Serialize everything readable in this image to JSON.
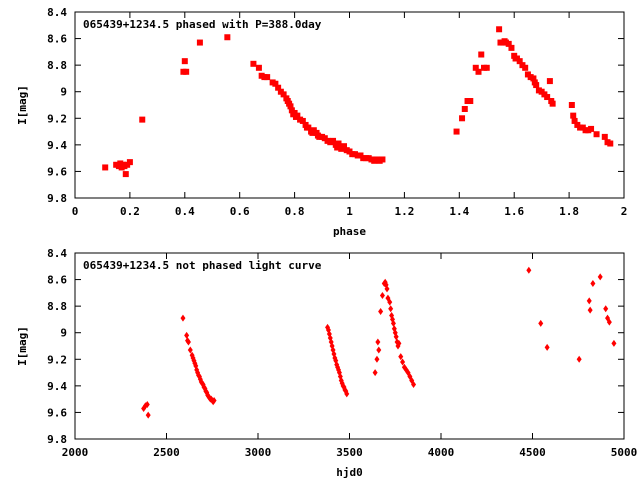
{
  "chart_data": [
    {
      "type": "scatter",
      "title": "065439+1234.5 phased with P=388.0day",
      "xlabel": "phase",
      "ylabel": "I[mag]",
      "xlim": [
        0,
        2
      ],
      "ylim": [
        9.8,
        8.4
      ],
      "y_inverted": true,
      "xticks": [
        "0",
        "0.2",
        "0.4",
        "0.6",
        "0.8",
        "1",
        "1.2",
        "1.4",
        "1.6",
        "1.8",
        "2"
      ],
      "xtick_values": [
        0,
        0.2,
        0.4,
        0.6,
        0.8,
        1.0,
        1.2,
        1.4,
        1.6,
        1.8,
        2.0
      ],
      "yticks": [
        "8.4",
        "8.6",
        "8.8",
        "9",
        "9.2",
        "9.4",
        "9.6",
        "9.8"
      ],
      "ytick_values": [
        8.4,
        8.6,
        8.8,
        9.0,
        9.2,
        9.4,
        9.6,
        9.8
      ],
      "grid": false,
      "point_color": "#ff0000",
      "marker": "filled-square",
      "series": [
        {
          "x": [
            0.11,
            0.15,
            0.16,
            0.165,
            0.17,
            0.175,
            0.18,
            0.185,
            0.19,
            0.2,
            0.245,
            0.395,
            0.4,
            0.405,
            0.455,
            0.555,
            0.65,
            0.67,
            0.68,
            0.69,
            0.7,
            0.72,
            0.73,
            0.74,
            0.75,
            0.76,
            0.77,
            0.775,
            0.78,
            0.785,
            0.79,
            0.795,
            0.8,
            0.805,
            0.81,
            0.82,
            0.83,
            0.84,
            0.845,
            0.85,
            0.86,
            0.865,
            0.87,
            0.88,
            0.885,
            0.89,
            0.9,
            0.91,
            0.92,
            0.93,
            0.94,
            0.95,
            0.955,
            0.96,
            0.97,
            0.98,
            0.99,
            1.0,
            1.01,
            1.02,
            1.03,
            1.04,
            1.05,
            1.06,
            1.07,
            1.08,
            1.09,
            1.1,
            1.11,
            1.12
          ],
          "y": [
            9.57,
            9.55,
            9.56,
            9.54,
            9.57,
            9.55,
            9.56,
            9.62,
            9.55,
            9.53,
            9.21,
            8.85,
            8.77,
            8.85,
            8.63,
            8.59,
            8.79,
            8.82,
            8.88,
            8.89,
            8.89,
            8.93,
            8.94,
            8.97,
            9.0,
            9.02,
            9.05,
            9.07,
            9.09,
            9.11,
            9.14,
            9.17,
            9.16,
            9.19,
            9.18,
            9.21,
            9.22,
            9.25,
            9.27,
            9.27,
            9.3,
            9.31,
            9.29,
            9.31,
            9.33,
            9.34,
            9.34,
            9.35,
            9.37,
            9.38,
            9.37,
            9.4,
            9.42,
            9.39,
            9.43,
            9.41,
            9.44,
            9.45,
            9.47,
            9.47,
            9.48,
            9.48,
            9.5,
            9.5,
            9.5,
            9.51,
            9.52,
            9.51,
            9.52,
            9.51
          ]
        },
        {
          "x": [
            1.39,
            1.41,
            1.42,
            1.43,
            1.44,
            1.46,
            1.47,
            1.48,
            1.49,
            1.5,
            1.545,
            1.55,
            1.56,
            1.565,
            1.57,
            1.58,
            1.59,
            1.6,
            1.605,
            1.61,
            1.62,
            1.63,
            1.64,
            1.65,
            1.66,
            1.67,
            1.675,
            1.68,
            1.69,
            1.7,
            1.71,
            1.72,
            1.73,
            1.735,
            1.74,
            1.81,
            1.815,
            1.82,
            1.83,
            1.84,
            1.85,
            1.86,
            1.87,
            1.88,
            1.9,
            1.93,
            1.94,
            1.95
          ],
          "y": [
            9.3,
            9.2,
            9.13,
            9.07,
            9.07,
            8.82,
            8.85,
            8.72,
            8.82,
            8.82,
            8.53,
            8.63,
            8.63,
            8.62,
            8.63,
            8.64,
            8.67,
            8.73,
            8.75,
            8.75,
            8.77,
            8.8,
            8.82,
            8.87,
            8.89,
            8.9,
            8.93,
            8.95,
            8.99,
            9.0,
            9.02,
            9.04,
            8.92,
            9.07,
            9.09,
            9.1,
            9.18,
            9.22,
            9.25,
            9.27,
            9.27,
            9.29,
            9.29,
            9.28,
            9.32,
            9.34,
            9.38,
            9.39
          ]
        }
      ]
    },
    {
      "type": "scatter",
      "title": "065439+1234.5 not phased light curve",
      "xlabel": "hjd0",
      "ylabel": "I[mag]",
      "xlim": [
        2000,
        5000
      ],
      "ylim": [
        9.8,
        8.4
      ],
      "y_inverted": true,
      "xticks": [
        "2000",
        "2500",
        "3000",
        "3500",
        "4000",
        "4500",
        "5000"
      ],
      "xtick_values": [
        2000,
        2500,
        3000,
        3500,
        4000,
        4500,
        5000
      ],
      "yticks": [
        "8.4",
        "8.6",
        "8.8",
        "9",
        "9.2",
        "9.4",
        "9.6",
        "9.8"
      ],
      "ytick_values": [
        8.4,
        8.6,
        8.8,
        9.0,
        9.2,
        9.4,
        9.6,
        9.8
      ],
      "grid": false,
      "point_color": "#ff0000",
      "marker": "filled-diamond",
      "series": [
        {
          "x": [
            2375,
            2385,
            2395,
            2400,
            2590,
            2610,
            2615,
            2620,
            2630,
            2640,
            2645,
            2650,
            2655,
            2660,
            2665,
            2670,
            2675,
            2680,
            2685,
            2690,
            2695,
            2700,
            2705,
            2710,
            2715,
            2720,
            2725,
            2730,
            2735,
            2740,
            2745,
            2750,
            2755,
            2760
          ],
          "y": [
            9.57,
            9.55,
            9.54,
            9.62,
            8.89,
            9.02,
            9.06,
            9.07,
            9.13,
            9.17,
            9.19,
            9.21,
            9.23,
            9.25,
            9.28,
            9.3,
            9.32,
            9.33,
            9.35,
            9.37,
            9.38,
            9.39,
            9.41,
            9.42,
            9.44,
            9.45,
            9.47,
            9.48,
            9.49,
            9.5,
            9.5,
            9.51,
            9.52,
            9.51
          ]
        },
        {
          "x": [
            3380,
            3385,
            3390,
            3395,
            3400,
            3405,
            3410,
            3415,
            3420,
            3425,
            3430,
            3435,
            3440,
            3445,
            3450,
            3455,
            3460,
            3465,
            3470,
            3475,
            3480,
            3485
          ],
          "y": [
            8.96,
            8.98,
            9.01,
            9.04,
            9.07,
            9.1,
            9.13,
            9.16,
            9.19,
            9.21,
            9.24,
            9.26,
            9.28,
            9.3,
            9.33,
            9.36,
            9.38,
            9.4,
            9.41,
            9.43,
            9.44,
            9.46
          ]
        },
        {
          "x": [
            3640,
            3650,
            3655,
            3660,
            3670,
            3680,
            3690,
            3695,
            3700,
            3705,
            3710,
            3720,
            3725,
            3730,
            3735,
            3740,
            3745,
            3750,
            3755,
            3760,
            3765,
            3770,
            3780,
            3790,
            3800,
            3810,
            3820,
            3830,
            3840,
            3850
          ],
          "y": [
            9.3,
            9.2,
            9.07,
            9.13,
            8.84,
            8.72,
            8.63,
            8.62,
            8.64,
            8.67,
            8.74,
            8.77,
            8.82,
            8.87,
            8.9,
            8.93,
            8.97,
            9.0,
            9.03,
            9.07,
            9.1,
            9.08,
            9.18,
            9.22,
            9.26,
            9.28,
            9.3,
            9.33,
            9.36,
            9.39
          ]
        },
        {
          "x": [
            4480,
            4545,
            4580,
            4755,
            4810,
            4815,
            4830,
            4870,
            4900,
            4910,
            4920,
            4945
          ],
          "y": [
            8.53,
            8.93,
            9.11,
            9.2,
            8.76,
            8.83,
            8.63,
            8.58,
            8.82,
            8.89,
            8.92,
            9.08
          ]
        }
      ]
    }
  ]
}
